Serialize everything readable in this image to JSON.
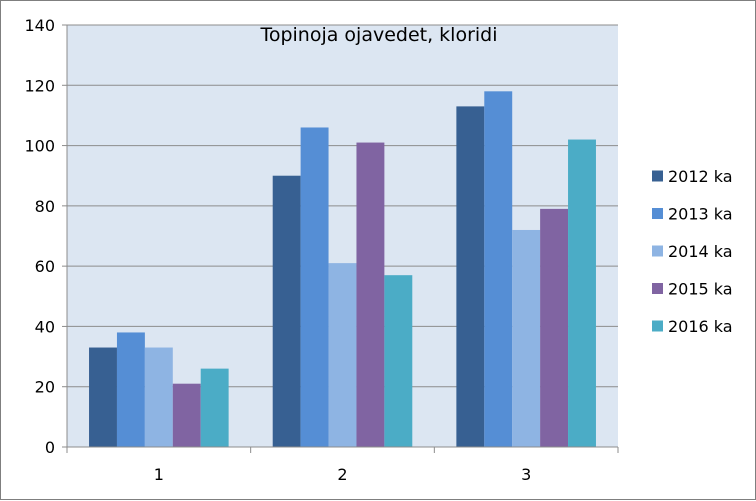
{
  "chart_data": {
    "type": "bar",
    "title": "Topinoja ojavedet, kloridi",
    "xlabel": "",
    "ylabel": "",
    "categories": [
      "1",
      "2",
      "3"
    ],
    "ylim": [
      0,
      140
    ],
    "yticks": [
      0,
      20,
      40,
      60,
      80,
      100,
      120,
      140
    ],
    "grid": true,
    "legend_position": "right",
    "plot_background": "#dce6f2",
    "series": [
      {
        "name": "2012 ka",
        "color": "#376092",
        "values": [
          33,
          90,
          113
        ]
      },
      {
        "name": "2013 ka",
        "color": "#558ed5",
        "values": [
          38,
          106,
          118
        ]
      },
      {
        "name": "2014 ka",
        "color": "#8eb4e3",
        "values": [
          33,
          61,
          72
        ]
      },
      {
        "name": "2015 ka",
        "color": "#8064a2",
        "values": [
          21,
          101,
          79
        ]
      },
      {
        "name": "2016 ka",
        "color": "#4bacc6",
        "values": [
          26,
          57,
          102
        ]
      }
    ]
  }
}
